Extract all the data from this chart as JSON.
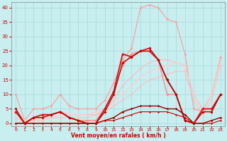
{
  "xlabel": "Vent moyen/en rafales ( km/h )",
  "background_color": "#c8eef0",
  "grid_color": "#aadddd",
  "x": [
    0,
    1,
    2,
    3,
    4,
    5,
    6,
    7,
    8,
    9,
    10,
    11,
    12,
    13,
    14,
    15,
    16,
    17,
    18,
    19,
    20,
    21,
    22,
    23
  ],
  "lines": [
    {
      "color": "#ff9999",
      "values": [
        10,
        1,
        5,
        5,
        6,
        10,
        6,
        5,
        5,
        5,
        8,
        14,
        22,
        26,
        40,
        41,
        40,
        36,
        35,
        24,
        5,
        4,
        10,
        23
      ],
      "marker": "D",
      "markersize": 1.8,
      "linewidth": 0.8
    },
    {
      "color": "#ffbbbb",
      "values": [
        4,
        1,
        1,
        2,
        3,
        4,
        3,
        3,
        3,
        3,
        5,
        8,
        13,
        16,
        19,
        21,
        22,
        22,
        21,
        20,
        10,
        5,
        10,
        22
      ],
      "marker": "D",
      "markersize": 1.5,
      "linewidth": 0.8
    },
    {
      "color": "#ffcccc",
      "values": [
        4,
        1,
        1,
        2,
        2,
        3,
        3,
        3,
        3,
        4,
        5,
        7,
        10,
        13,
        16,
        18,
        19,
        20,
        21,
        20,
        10,
        4,
        10,
        22
      ],
      "marker": "D",
      "markersize": 1.5,
      "linewidth": 0.8
    },
    {
      "color": "#ffbbbb",
      "values": [
        2,
        0,
        1,
        1,
        2,
        2,
        2,
        2,
        2,
        3,
        4,
        6,
        8,
        10,
        13,
        15,
        16,
        17,
        18,
        18,
        8,
        3,
        8,
        20
      ],
      "marker": "D",
      "markersize": 1.5,
      "linewidth": 0.7
    },
    {
      "color": "#ff8888",
      "values": [
        4,
        0,
        2,
        3,
        3,
        4,
        2,
        1,
        1,
        1,
        5,
        11,
        20,
        24,
        25,
        26,
        22,
        10,
        10,
        1,
        0,
        4,
        4,
        10
      ],
      "marker": "D",
      "markersize": 2.0,
      "linewidth": 1.0
    },
    {
      "color": "#dd1111",
      "values": [
        4,
        0,
        2,
        3,
        3,
        4,
        2,
        1,
        0,
        0,
        5,
        11,
        24,
        23,
        25,
        25,
        22,
        15,
        10,
        1,
        0,
        5,
        5,
        10
      ],
      "marker": "D",
      "markersize": 2.2,
      "linewidth": 1.3
    },
    {
      "color": "#bb0000",
      "values": [
        5,
        0,
        2,
        2,
        3,
        4,
        2,
        1,
        0,
        0,
        4,
        10,
        21,
        23,
        25,
        26,
        22,
        15,
        10,
        1,
        0,
        4,
        4,
        10
      ],
      "marker": "D",
      "markersize": 2.0,
      "linewidth": 1.0
    },
    {
      "color": "#990000",
      "values": [
        0,
        0,
        0,
        0,
        0,
        0,
        0,
        0,
        0,
        0,
        1,
        2,
        4,
        5,
        6,
        6,
        6,
        5,
        5,
        3,
        0,
        0,
        1,
        2
      ],
      "marker": "D",
      "markersize": 1.8,
      "linewidth": 1.0
    },
    {
      "color": "#cc0000",
      "values": [
        0,
        0,
        0,
        0,
        0,
        0,
        0,
        0,
        0,
        0,
        1,
        1,
        2,
        3,
        4,
        4,
        4,
        4,
        3,
        2,
        0,
        0,
        0,
        1
      ],
      "marker": "D",
      "markersize": 1.5,
      "linewidth": 0.8
    }
  ],
  "ylim": [
    -1,
    42
  ],
  "yticks": [
    0,
    5,
    10,
    15,
    20,
    25,
    30,
    35,
    40
  ],
  "xlim": [
    -0.5,
    23.5
  ],
  "xticks": [
    0,
    1,
    2,
    3,
    4,
    5,
    6,
    7,
    8,
    9,
    10,
    11,
    12,
    13,
    14,
    15,
    16,
    17,
    18,
    19,
    20,
    21,
    22,
    23
  ]
}
